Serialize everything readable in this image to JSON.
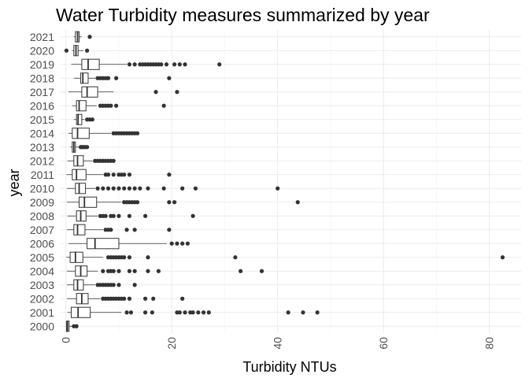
{
  "chart_data": {
    "type": "boxplot",
    "orientation": "horizontal",
    "title": "Water Turbidity measures summarized by year",
    "xlabel": "Turbidity NTUs",
    "ylabel": "year",
    "xlim": [
      -1,
      86
    ],
    "xticks": [
      0,
      20,
      40,
      60,
      80
    ],
    "grid": true,
    "legend": "none",
    "colors": {
      "box_stroke": "#333333",
      "box_fill": "#ffffff",
      "grid": "#ebebeb",
      "text": "#4d4d4d"
    },
    "categories": [
      "2000",
      "2001",
      "2002",
      "2003",
      "2004",
      "2005",
      "2006",
      "2007",
      "2008",
      "2009",
      "2010",
      "2011",
      "2012",
      "2013",
      "2014",
      "2015",
      "2016",
      "2017",
      "2018",
      "2019",
      "2020",
      "2021"
    ],
    "boxes": [
      {
        "year": "2000",
        "min": 0.0,
        "q1": 0.1,
        "median": 0.3,
        "q3": 0.6,
        "max": 1.2,
        "outliers": [
          1.5,
          2.0
        ]
      },
      {
        "year": "2001",
        "min": 0.3,
        "q1": 1.0,
        "median": 2.3,
        "q3": 4.6,
        "max": 10.5,
        "outliers": [
          11.5,
          12.3,
          15.0,
          16.3,
          21.0,
          21.5,
          22.5,
          23.5,
          24.0,
          25.0,
          26.0,
          27.0,
          42.0,
          44.8,
          47.5
        ]
      },
      {
        "year": "2002",
        "min": 0.2,
        "q1": 2.0,
        "median": 3.0,
        "q3": 4.2,
        "max": 6.5,
        "outliers": [
          7.0,
          7.5,
          8.0,
          8.5,
          9.0,
          9.5,
          10.0,
          10.5,
          11.0,
          12.0,
          15.0,
          16.5,
          22.0
        ]
      },
      {
        "year": "2003",
        "min": 0.2,
        "q1": 1.5,
        "median": 2.2,
        "q3": 3.3,
        "max": 5.5,
        "outliers": [
          6.0,
          6.5,
          7.0,
          7.5,
          8.0,
          8.5,
          9.0,
          10.0,
          13.0
        ]
      },
      {
        "year": "2004",
        "min": 0.2,
        "q1": 1.8,
        "median": 2.8,
        "q3": 4.0,
        "max": 6.0,
        "outliers": [
          7.0,
          8.0,
          8.5,
          9.0,
          10.0,
          12.0,
          13.0,
          15.5,
          17.5,
          33.0,
          37.0
        ]
      },
      {
        "year": "2005",
        "min": 0.1,
        "q1": 0.8,
        "median": 1.8,
        "q3": 3.2,
        "max": 7.0,
        "outliers": [
          8.0,
          8.5,
          9.0,
          9.5,
          10.0,
          10.5,
          11.0,
          12.0,
          15.5,
          32.0,
          82.5
        ]
      },
      {
        "year": "2006",
        "min": 0.5,
        "q1": 4.0,
        "median": 5.5,
        "q3": 10.0,
        "max": 19.0,
        "outliers": [
          20.0,
          21.0,
          22.0,
          23.0
        ]
      },
      {
        "year": "2007",
        "min": 0.2,
        "q1": 1.5,
        "median": 2.2,
        "q3": 3.6,
        "max": 7.0,
        "outliers": [
          7.5,
          8.0,
          8.5,
          11.5,
          13.0,
          19.5
        ]
      },
      {
        "year": "2008",
        "min": 0.3,
        "q1": 2.0,
        "median": 2.8,
        "q3": 3.8,
        "max": 6.0,
        "outliers": [
          6.5,
          7.0,
          7.5,
          8.5,
          9.0,
          10.0,
          12.0,
          15.0,
          24.0
        ]
      },
      {
        "year": "2009",
        "min": 0.2,
        "q1": 2.5,
        "median": 3.5,
        "q3": 5.8,
        "max": 10.5,
        "outliers": [
          11.0,
          11.5,
          12.0,
          12.5,
          13.0,
          13.5,
          19.5,
          20.5,
          43.8
        ]
      },
      {
        "year": "2010",
        "min": 0.2,
        "q1": 1.8,
        "median": 2.5,
        "q3": 3.7,
        "max": 5.5,
        "outliers": [
          6.0,
          7.0,
          8.0,
          9.0,
          10.0,
          11.0,
          12.0,
          13.0,
          14.0,
          15.5,
          18.5,
          22.0,
          24.5,
          40.0
        ]
      },
      {
        "year": "2011",
        "min": 0.1,
        "q1": 1.2,
        "median": 2.0,
        "q3": 3.8,
        "max": 7.0,
        "outliers": [
          7.5,
          8.0,
          9.0,
          10.0,
          10.5,
          11.0,
          12.0,
          19.5
        ]
      },
      {
        "year": "2012",
        "min": 0.3,
        "q1": 1.5,
        "median": 2.2,
        "q3": 3.3,
        "max": 5.0,
        "outliers": [
          5.5,
          6.0,
          6.5,
          7.0,
          7.5,
          8.0,
          8.5,
          9.0
        ]
      },
      {
        "year": "2013",
        "min": 0.8,
        "q1": 1.2,
        "median": 1.5,
        "q3": 1.8,
        "max": 2.5,
        "outliers": [
          2.8,
          3.0,
          3.3,
          3.6,
          4.0
        ]
      },
      {
        "year": "2014",
        "min": 0.5,
        "q1": 1.2,
        "median": 2.2,
        "q3": 4.4,
        "max": 8.5,
        "outliers": [
          9.0,
          9.5,
          10.0,
          10.5,
          11.0,
          11.5,
          12.0,
          12.5,
          13.0,
          13.5
        ]
      },
      {
        "year": "2015",
        "min": 1.5,
        "q1": 2.0,
        "median": 2.3,
        "q3": 3.0,
        "max": 3.5,
        "outliers": [
          4.0,
          4.5,
          5.0
        ]
      },
      {
        "year": "2016",
        "min": 1.2,
        "q1": 2.0,
        "median": 2.5,
        "q3": 3.8,
        "max": 5.8,
        "outliers": [
          6.5,
          7.0,
          7.5,
          8.0,
          8.5,
          9.5,
          18.5
        ]
      },
      {
        "year": "2017",
        "min": 0.5,
        "q1": 3.0,
        "median": 4.0,
        "q3": 6.0,
        "max": 9.0,
        "outliers": [
          17.0,
          21.0
        ]
      },
      {
        "year": "2018",
        "min": 1.5,
        "q1": 2.8,
        "median": 3.2,
        "q3": 4.2,
        "max": 5.8,
        "outliers": [
          6.0,
          6.5,
          7.0,
          7.5,
          8.0,
          9.5,
          19.5
        ]
      },
      {
        "year": "2019",
        "min": 1.0,
        "q1": 3.0,
        "median": 4.2,
        "q3": 6.3,
        "max": 11.5,
        "outliers": [
          12.0,
          13.0,
          14.0,
          14.5,
          15.0,
          15.5,
          16.0,
          16.5,
          17.0,
          17.5,
          18.0,
          19.0,
          20.5,
          21.5,
          22.5,
          29.0
        ]
      },
      {
        "year": "2020",
        "min": 1.2,
        "q1": 1.5,
        "median": 1.9,
        "q3": 2.3,
        "max": 3.3,
        "outliers": [
          0.1,
          4.0
        ]
      },
      {
        "year": "2021",
        "min": 1.5,
        "q1": 1.8,
        "median": 2.2,
        "q3": 2.5,
        "max": 3.0,
        "outliers": [
          4.5
        ]
      }
    ]
  }
}
